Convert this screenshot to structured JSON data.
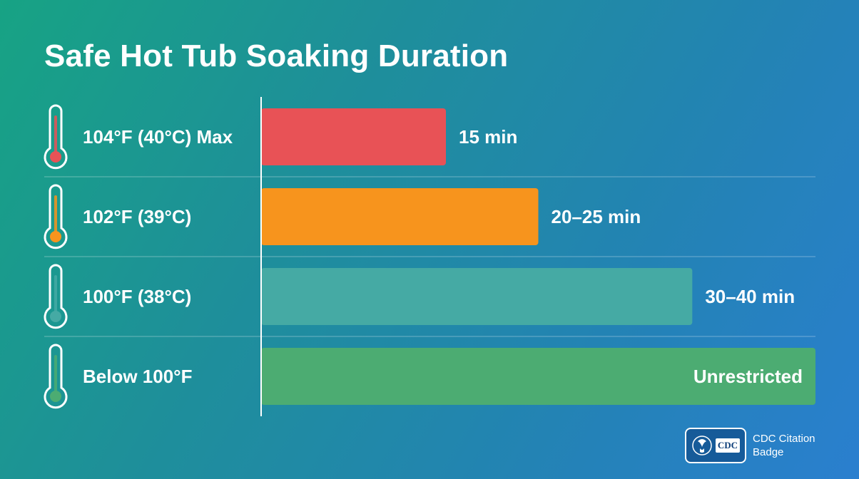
{
  "chart_data": {
    "type": "bar",
    "orientation": "horizontal",
    "title": "Safe Hot Tub Soaking Duration",
    "categories": [
      "104°F (40°C) Max",
      "102°F (39°C)",
      "100°F (38°C)",
      "Below 100°F"
    ],
    "values": [
      15,
      22.5,
      35,
      45
    ],
    "value_labels": [
      "15 min",
      "20–25 min",
      "30–40 min",
      "Unrestricted"
    ],
    "colors": [
      "#e85256",
      "#f7941d",
      "#45aaa4",
      "#4cac72"
    ],
    "xlim": [
      0,
      45
    ],
    "grid": false
  },
  "badge": {
    "logo_text": "CDC",
    "caption": "CDC Citation Badge"
  }
}
